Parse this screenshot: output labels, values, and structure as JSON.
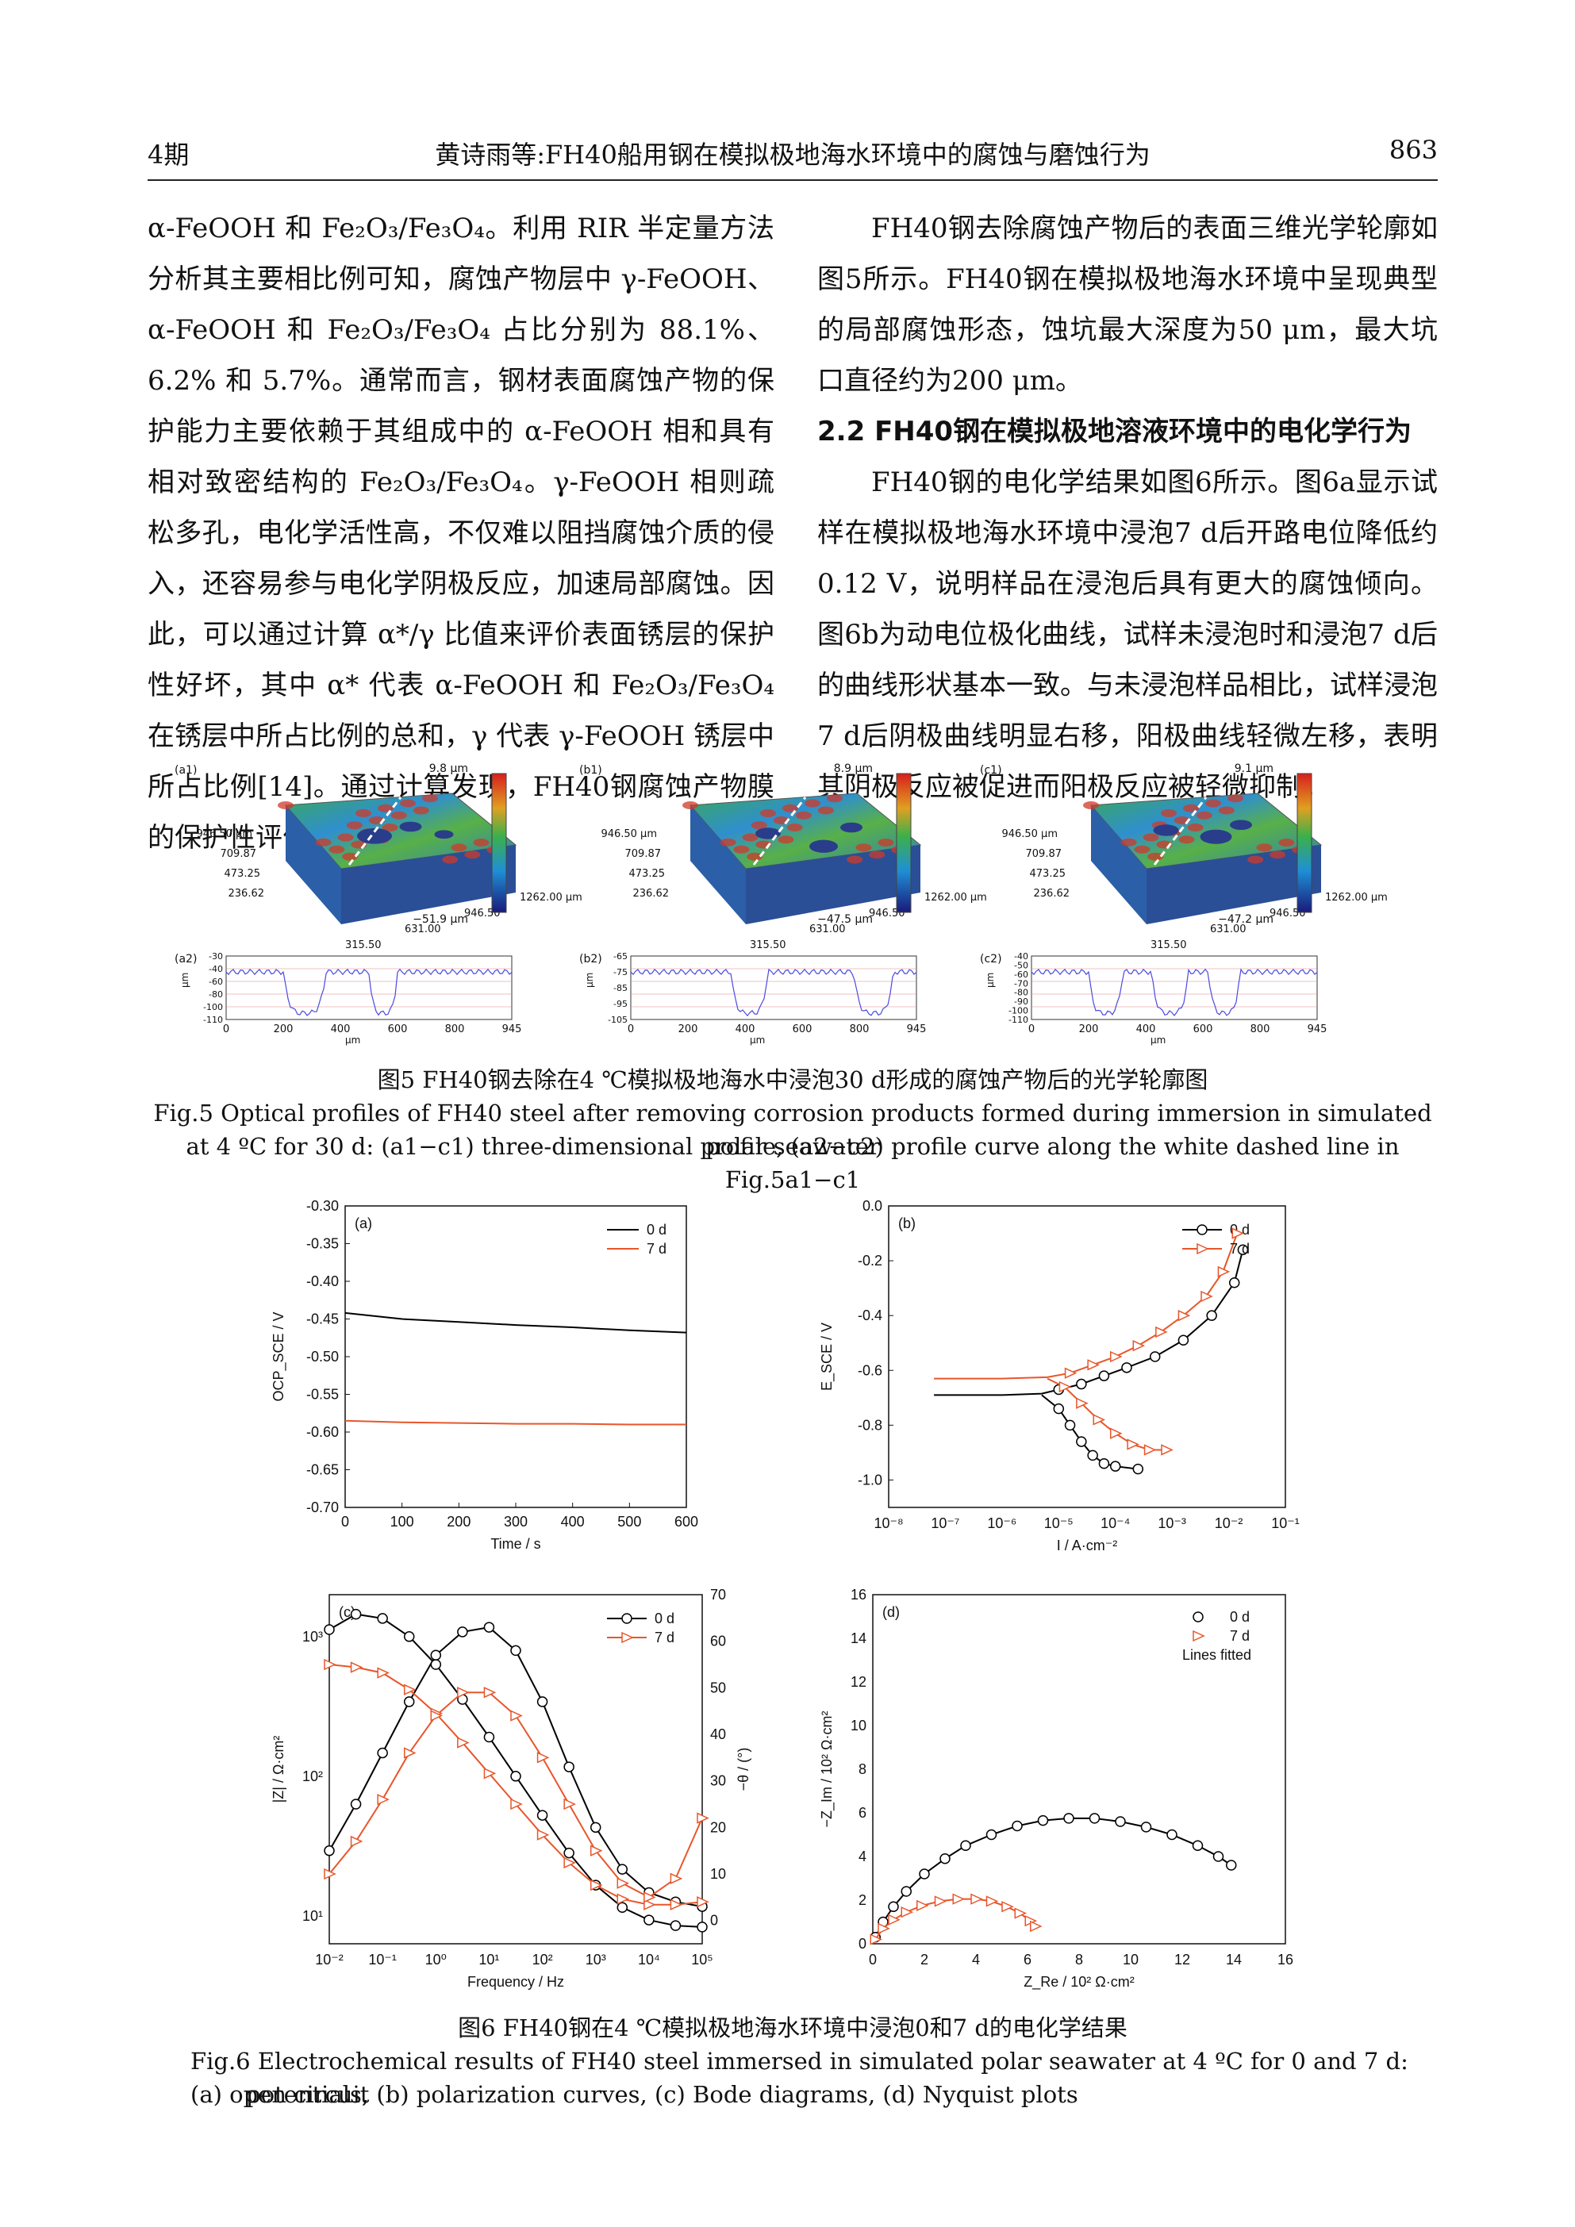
{
  "header": {
    "issue": "4期",
    "running_title": "黄诗雨等:FH40船用钢在模拟极地海水环境中的腐蚀与磨蚀行为",
    "page_number": "863"
  },
  "left_column": [
    "α-FeOOH 和 Fe₂O₃/Fe₃O₄。利用 RIR 半定量方法分析其主要相比例可知，腐蚀产物层中 γ-FeOOH、α-FeOOH 和 Fe₂O₃/Fe₃O₄ 占比分别为 88.1%、6.2% 和 5.7%。通常而言，钢材表面腐蚀产物的保护能力主要依赖于其组成中的 α-FeOOH 相和具有相对致密结构的 Fe₂O₃/Fe₃O₄。γ-FeOOH 相则疏松多孔，电化学活性高，不仅难以阻挡腐蚀介质的侵入，还容易参与电化学阴极反应，加速局部腐蚀。因此，可以通过计算 α*/γ 比值来评价表面锈层的保护性好坏，其中 α* 代表 α-FeOOH 和 Fe₂O₃/Fe₃O₄ 在锈层中所占比例的总和，γ 代表 γ-FeOOH 锈层中所占比例[14]。通过计算发现，FH40钢腐蚀产物膜的保护性评价指标为0.135。"
  ],
  "right_column": {
    "para1": "FH40钢去除腐蚀产物后的表面三维光学轮廓如图5所示。FH40钢在模拟极地海水环境中呈现典型的局部腐蚀形态，蚀坑最大深度为50 μm，最大坑口直径约为200 μm。",
    "section": "2.2  FH40钢在模拟极地溶液环境中的电化学行为",
    "para2": "FH40钢的电化学结果如图6所示。图6a显示试样在模拟极地海水环境中浸泡7 d后开路电位降低约0.12 V，说明样品在浸泡后具有更大的腐蚀倾向。图6b为动电位极化曲线，试样未浸泡时和浸泡7 d后的曲线形状基本一致。与未浸泡样品相比，试样浸泡7 d后阴极曲线明显右移，阳极曲线轻微左移，表明其阴极反应被促进而阳极反应被轻微抑制。"
  },
  "fig5": {
    "panels": [
      {
        "label3d": "(a1)",
        "zmax": "9.8 μm",
        "zmin": "−51.9 μm",
        "y_ticks": [
          "946.50 μm",
          "709.87",
          "473.25",
          "236.62"
        ],
        "x_ticks": [
          "1262.00 μm",
          "946.50",
          "631.00",
          "315.50"
        ],
        "label2d": "(a2)",
        "prof_y": [
          "-30",
          "-40",
          "-60",
          "-80",
          "-100",
          "-110"
        ],
        "prof_x": [
          "0",
          "200",
          "400",
          "600",
          "800",
          "945"
        ],
        "unit": "μm",
        "yunit": "μm"
      },
      {
        "label3d": "(b1)",
        "zmax": "8.9 μm",
        "zmin": "−47.5 μm",
        "y_ticks": [
          "946.50 μm",
          "709.87",
          "473.25",
          "236.62"
        ],
        "x_ticks": [
          "1262.00 μm",
          "946.50",
          "631.00",
          "315.50"
        ],
        "label2d": "(b2)",
        "prof_y": [
          "-65",
          "-75",
          "-85",
          "-95",
          "-105"
        ],
        "prof_x": [
          "0",
          "200",
          "400",
          "600",
          "800",
          "945"
        ],
        "unit": "μm",
        "yunit": "μm"
      },
      {
        "label3d": "(c1)",
        "zmax": "9.1 μm",
        "zmin": "−47.2 μm",
        "y_ticks": [
          "946.50 μm",
          "709.87",
          "473.25",
          "236.62"
        ],
        "x_ticks": [
          "1262.00 μm",
          "946.50",
          "631.00",
          "315.50"
        ],
        "label2d": "(c2)",
        "prof_y": [
          "-40",
          "-50",
          "-60",
          "-70",
          "-80",
          "-90",
          "-100",
          "-110"
        ],
        "prof_x": [
          "0",
          "200",
          "400",
          "600",
          "800",
          "945"
        ],
        "unit": "μm",
        "yunit": "μm"
      }
    ],
    "caption_cn": "图5 FH40钢去除在4 ℃模拟极地海水中浸泡30 d形成的腐蚀产物后的光学轮廓图",
    "caption_en_1": "Fig.5 Optical profiles of FH40 steel after removing corrosion products formed during immersion in simulated polar seawater",
    "caption_en_2": "at 4 ºC for 30 d: (a1−c1) three-dimensional profile, (a2−c2) profile curve along the white dashed line in Fig.5a1−c1"
  },
  "fig6": {
    "caption_cn": "图6 FH40钢在4 ℃模拟极地海水环境中浸泡0和7 d的电化学结果",
    "caption_en_1": "Fig.6 Electrochemical results of FH40 steel immersed in simulated polar seawater at 4 ºC for 0 and 7 d: (a) open circuit",
    "caption_en_2": "potentials, (b) polarization curves, (c) Bode diagrams, (d) Nyquist plots"
  },
  "chart_data": [
    {
      "type": "line",
      "panel": "(a)",
      "xlabel": "Time / s",
      "ylabel": "OCP_SCE / V",
      "xlim": [
        0,
        600
      ],
      "ylim": [
        -0.7,
        -0.3
      ],
      "x_ticks": [
        "0",
        "100",
        "200",
        "300",
        "400",
        "500",
        "600"
      ],
      "y_ticks": [
        "-0.30",
        "-0.35",
        "-0.40",
        "-0.45",
        "-0.50",
        "-0.55",
        "-0.60",
        "-0.65",
        "-0.70"
      ],
      "series": [
        {
          "name": "0 d",
          "color": "#000000",
          "x": [
            0,
            100,
            200,
            300,
            400,
            500,
            600
          ],
          "y": [
            -0.442,
            -0.45,
            -0.454,
            -0.458,
            -0.461,
            -0.465,
            -0.468
          ]
        },
        {
          "name": "7 d",
          "color": "#e8562a",
          "x": [
            0,
            100,
            200,
            300,
            400,
            500,
            600
          ],
          "y": [
            -0.585,
            -0.587,
            -0.588,
            -0.589,
            -0.589,
            -0.59,
            -0.59
          ]
        }
      ]
    },
    {
      "type": "line",
      "panel": "(b)",
      "xlabel": "I / A·cm⁻²",
      "ylabel": "E_SCE / V",
      "x_scale": "log",
      "xlim": [
        -8,
        -1
      ],
      "ylim": [
        -1.1,
        0.0
      ],
      "x_ticks": [
        "10⁻⁸",
        "10⁻⁷",
        "10⁻⁶",
        "10⁻⁵",
        "10⁻⁴",
        "10⁻³",
        "10⁻²",
        "10⁻¹"
      ],
      "y_ticks": [
        "0.0",
        "-0.2",
        "-0.4",
        "-0.6",
        "-0.8",
        "-1.0"
      ],
      "series": [
        {
          "name": "0 d",
          "color": "#000000",
          "marker": "circle",
          "logI_anodic": [
            -7.2,
            -6,
            -5.3,
            -5,
            -4.6,
            -4.2,
            -3.8,
            -3.3,
            -2.8,
            -2.3,
            -1.9,
            -1.75
          ],
          "E_anodic": [
            -0.69,
            -0.69,
            -0.685,
            -0.67,
            -0.65,
            -0.62,
            -0.59,
            -0.55,
            -0.49,
            -0.4,
            -0.28,
            -0.16
          ],
          "logI_cathodic": [
            -5.3,
            -5,
            -4.8,
            -4.6,
            -4.4,
            -4.2,
            -4,
            -3.6
          ],
          "E_cathodic": [
            -0.69,
            -0.74,
            -0.8,
            -0.86,
            -0.91,
            -0.94,
            -0.95,
            -0.96
          ]
        },
        {
          "name": "7 d",
          "color": "#e8562a",
          "marker": "triangle",
          "logI_anodic": [
            -7.2,
            -6,
            -5.2,
            -4.8,
            -4.4,
            -4,
            -3.6,
            -3.2,
            -2.8,
            -2.4,
            -2.1,
            -1.85
          ],
          "E_anodic": [
            -0.63,
            -0.63,
            -0.625,
            -0.61,
            -0.58,
            -0.55,
            -0.51,
            -0.46,
            -0.4,
            -0.33,
            -0.24,
            -0.1
          ],
          "logI_cathodic": [
            -5.2,
            -4.9,
            -4.6,
            -4.3,
            -4,
            -3.7,
            -3.4,
            -3.1
          ],
          "E_cathodic": [
            -0.63,
            -0.66,
            -0.72,
            -0.78,
            -0.83,
            -0.87,
            -0.89,
            -0.89
          ]
        }
      ]
    },
    {
      "type": "line",
      "panel": "(c)",
      "xlabel": "Frequency / Hz",
      "ylabel": "|Z| / Ω·cm²",
      "ylabel2": "−θ / (°)",
      "x_scale": "log",
      "y_scale": "log",
      "xlim": [
        -2,
        5
      ],
      "ylim_log": [
        0.8,
        3.3
      ],
      "ylim2": [
        -5,
        70
      ],
      "x_ticks": [
        "10⁻²",
        "10⁻¹",
        "10⁰",
        "10¹",
        "10²",
        "10³",
        "10⁴",
        "10⁵"
      ],
      "y_ticks": [
        "10¹",
        "10²",
        "10³"
      ],
      "y2_ticks": [
        "0",
        "10",
        "20",
        "30",
        "40",
        "50",
        "60",
        "70"
      ],
      "series": [
        {
          "name": "0 d",
          "color": "#000000",
          "logf": [
            -2,
            -1.5,
            -1,
            -0.5,
            0,
            0.5,
            1,
            1.5,
            2,
            2.5,
            3,
            3.5,
            4,
            4.5,
            5
          ],
          "logZ": [
            3.05,
            3.16,
            3.13,
            3.0,
            2.8,
            2.55,
            2.28,
            2.0,
            1.72,
            1.45,
            1.22,
            1.06,
            0.97,
            0.93,
            0.92
          ],
          "phase": [
            15,
            25,
            36,
            47,
            57,
            62,
            63,
            58,
            47,
            33,
            20,
            11,
            6,
            4,
            3
          ]
        },
        {
          "name": "7 d",
          "color": "#e8562a",
          "logf": [
            -2,
            -1.5,
            -1,
            -0.5,
            0,
            0.5,
            1,
            1.5,
            2,
            2.5,
            3,
            3.5,
            4,
            4.5,
            5
          ],
          "logZ": [
            2.8,
            2.78,
            2.74,
            2.62,
            2.45,
            2.24,
            2.02,
            1.8,
            1.58,
            1.38,
            1.22,
            1.12,
            1.08,
            1.08,
            1.1
          ],
          "phase": [
            10,
            17,
            26,
            36,
            44,
            49,
            49,
            44,
            35,
            25,
            15,
            8,
            5,
            9,
            22
          ]
        }
      ]
    },
    {
      "type": "scatter",
      "panel": "(d)",
      "xlabel": "Z_Re / 10² Ω·cm²",
      "ylabel": "−Z_Im / 10² Ω·cm²",
      "xlim": [
        0,
        16
      ],
      "ylim": [
        0,
        16
      ],
      "x_ticks": [
        "0",
        "2",
        "4",
        "6",
        "8",
        "10",
        "12",
        "14",
        "16"
      ],
      "y_ticks": [
        "0",
        "2",
        "4",
        "6",
        "8",
        "10",
        "12",
        "14",
        "16"
      ],
      "legend_extra": "Lines fitted",
      "series": [
        {
          "name": "0 d",
          "color": "#000000",
          "marker": "circle",
          "x": [
            0.1,
            0.4,
            0.8,
            1.3,
            2,
            2.8,
            3.6,
            4.6,
            5.6,
            6.6,
            7.6,
            8.6,
            9.6,
            10.6,
            11.6,
            12.6,
            13.4,
            13.9
          ],
          "y": [
            0.3,
            1,
            1.7,
            2.4,
            3.2,
            3.9,
            4.5,
            5.0,
            5.4,
            5.65,
            5.75,
            5.75,
            5.6,
            5.35,
            5.0,
            4.5,
            4.0,
            3.6
          ]
        },
        {
          "name": "7 d",
          "color": "#e8562a",
          "marker": "triangle",
          "x": [
            0.1,
            0.4,
            0.8,
            1.3,
            1.9,
            2.6,
            3.3,
            4.0,
            4.6,
            5.2,
            5.7,
            6.1,
            6.3
          ],
          "y": [
            0.2,
            0.7,
            1.1,
            1.45,
            1.75,
            1.95,
            2.05,
            2.05,
            1.95,
            1.7,
            1.4,
            1.05,
            0.8
          ]
        }
      ]
    }
  ]
}
